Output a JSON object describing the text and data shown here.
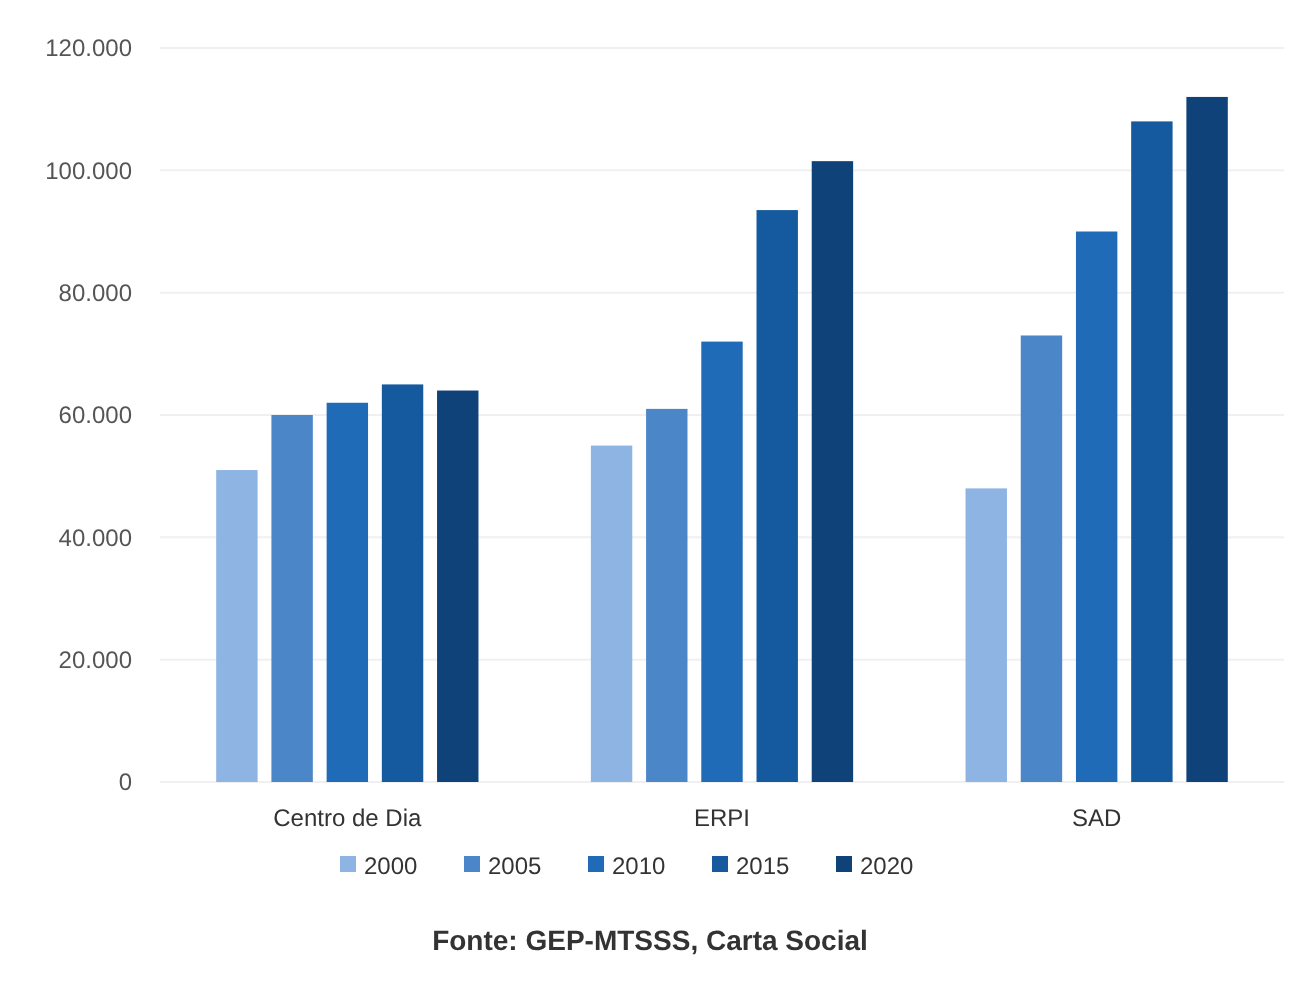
{
  "chart_data": {
    "type": "bar",
    "categories": [
      "Centro de Dia",
      "ERPI",
      "SAD"
    ],
    "series": [
      {
        "name": "2000",
        "color": "#8db4e2",
        "values": [
          51000,
          55000,
          48000
        ]
      },
      {
        "name": "2005",
        "color": "#4a86c8",
        "values": [
          60000,
          61000,
          73000
        ]
      },
      {
        "name": "2010",
        "color": "#1f6bb8",
        "values": [
          62000,
          72000,
          90000
        ]
      },
      {
        "name": "2015",
        "color": "#155a9e",
        "values": [
          65000,
          93500,
          108000
        ]
      },
      {
        "name": "2020",
        "color": "#0f4278",
        "values": [
          64000,
          101500,
          112000
        ]
      }
    ],
    "ylim": [
      0,
      120000
    ],
    "yticks": [
      {
        "value": 0,
        "label": "0"
      },
      {
        "value": 20000,
        "label": "20.000"
      },
      {
        "value": 40000,
        "label": "40.000"
      },
      {
        "value": 60000,
        "label": "60.000"
      },
      {
        "value": 80000,
        "label": "80.000"
      },
      {
        "value": 100000,
        "label": "100.000"
      },
      {
        "value": 120000,
        "label": "120.000"
      }
    ],
    "grid": "y",
    "legend": "bottom",
    "annotations": [
      "Fonte: GEP-MTSSS, Carta Social"
    ]
  }
}
